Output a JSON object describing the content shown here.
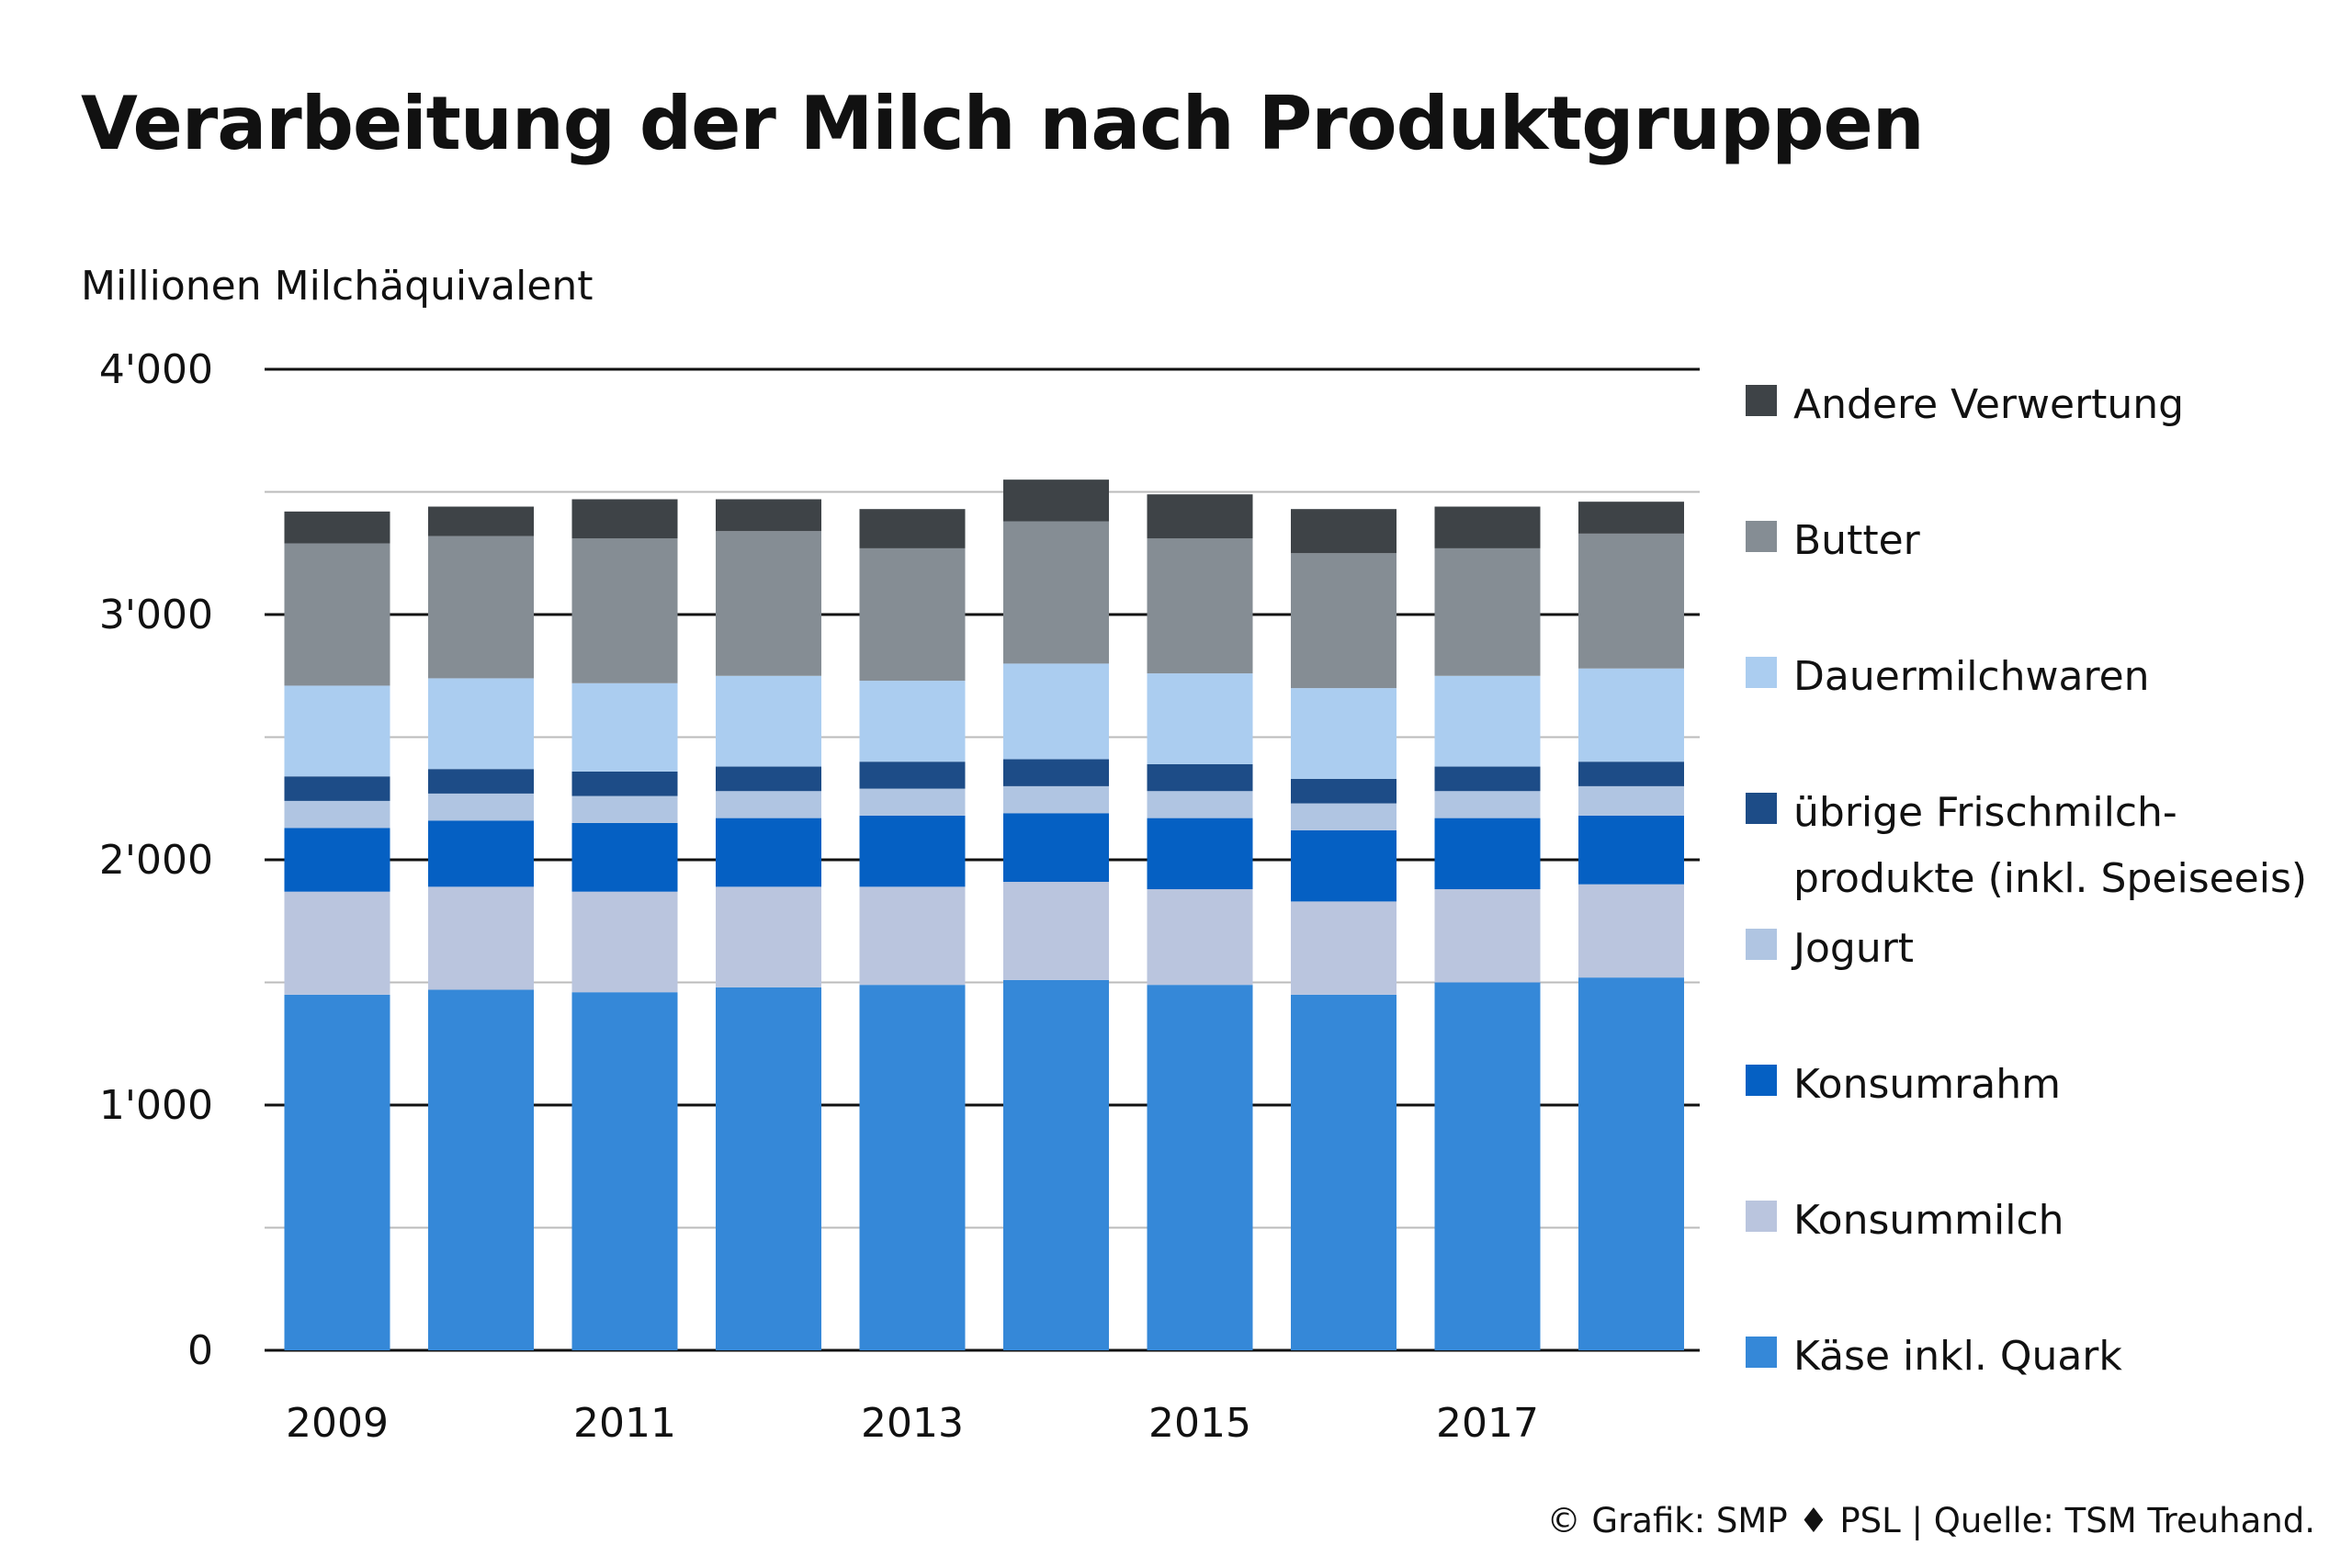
{
  "title": "Verarbeitung der Milch nach Produktgruppen",
  "footer": "© Grafik: SMP ♦ PSL | Quelle: TSM Treuhand.",
  "chart_data": {
    "type": "bar",
    "stacked": true,
    "ylabel": "Millionen Milchäquivalent",
    "ylim": [
      0,
      4000
    ],
    "y_ticks": [
      0,
      1000,
      2000,
      3000,
      4000
    ],
    "y_tick_labels": [
      "0",
      "1'000",
      "2'000",
      "3'000",
      "4'000"
    ],
    "grid": true,
    "legend_position": "right",
    "categories": [
      "2009",
      "2010",
      "2011",
      "2012",
      "2013",
      "2014",
      "2015",
      "2016",
      "2017",
      "2018"
    ],
    "x_tick_labels": [
      "2009",
      "",
      "2011",
      "",
      "2013",
      "",
      "2015",
      "",
      "2017",
      ""
    ],
    "series": [
      {
        "name": "Käse inkl. Quark",
        "color": "#3588d8",
        "values": [
          1450,
          1470,
          1460,
          1480,
          1490,
          1510,
          1490,
          1450,
          1500,
          1520
        ]
      },
      {
        "name": "Konsummilch",
        "color": "#bac5de",
        "values": [
          420,
          420,
          410,
          410,
          400,
          400,
          390,
          380,
          380,
          380
        ]
      },
      {
        "name": "Konsumrahm",
        "color": "#0560c3",
        "values": [
          260,
          270,
          280,
          280,
          290,
          280,
          290,
          290,
          290,
          280
        ]
      },
      {
        "name": "Jogurt",
        "color": "#b0c5e2",
        "values": [
          110,
          110,
          110,
          110,
          110,
          110,
          110,
          110,
          110,
          120
        ]
      },
      {
        "name": "übrige Frischmilch-\nprodukte (inkl. Speiseeis)",
        "color": "#1d4c87",
        "values": [
          100,
          100,
          100,
          100,
          110,
          110,
          110,
          100,
          100,
          100
        ]
      },
      {
        "name": "Dauermilchwaren",
        "color": "#abcdf0",
        "values": [
          370,
          370,
          360,
          370,
          330,
          390,
          370,
          370,
          370,
          380
        ]
      },
      {
        "name": "Butter",
        "color": "#858d94",
        "values": [
          580,
          580,
          590,
          590,
          540,
          580,
          550,
          550,
          520,
          550
        ]
      },
      {
        "name": "Andere Verwertung",
        "color": "#3e4347",
        "values": [
          130,
          120,
          160,
          130,
          160,
          170,
          180,
          180,
          170,
          130
        ]
      }
    ]
  }
}
